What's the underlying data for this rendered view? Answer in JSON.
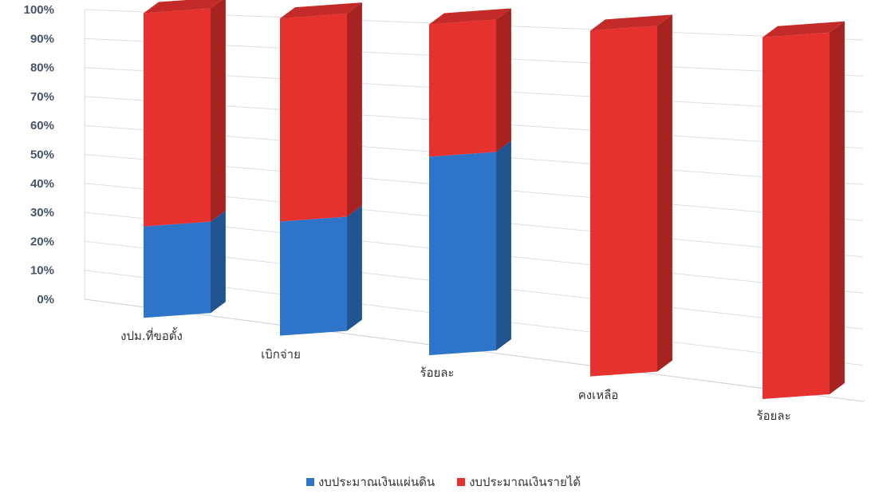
{
  "chart_data": {
    "type": "bar",
    "stacked": true,
    "percent_stacked": true,
    "three_d": true,
    "categories": [
      "งปม.ที่ขอตั้ง",
      "เบิกจ่าย",
      "ร้อยละ",
      "คงเหลือ",
      "ร้อยละ"
    ],
    "series": [
      {
        "name": "งบประมาณเงินแผ่นดิน",
        "values": [
          30,
          36,
          60,
          0,
          0
        ]
      },
      {
        "name": "งบประมาณเงินรายได้",
        "values": [
          70,
          64,
          40,
          100,
          100
        ]
      }
    ],
    "y_ticks": [
      "0%",
      "10%",
      "20%",
      "30%",
      "40%",
      "50%",
      "60%",
      "70%",
      "80%",
      "90%",
      "100%"
    ],
    "ylim": [
      0,
      100
    ],
    "grid": true,
    "legend_position": "bottom",
    "colors": {
      "series1": "#2e75c9",
      "series2": "#e6312f"
    }
  }
}
